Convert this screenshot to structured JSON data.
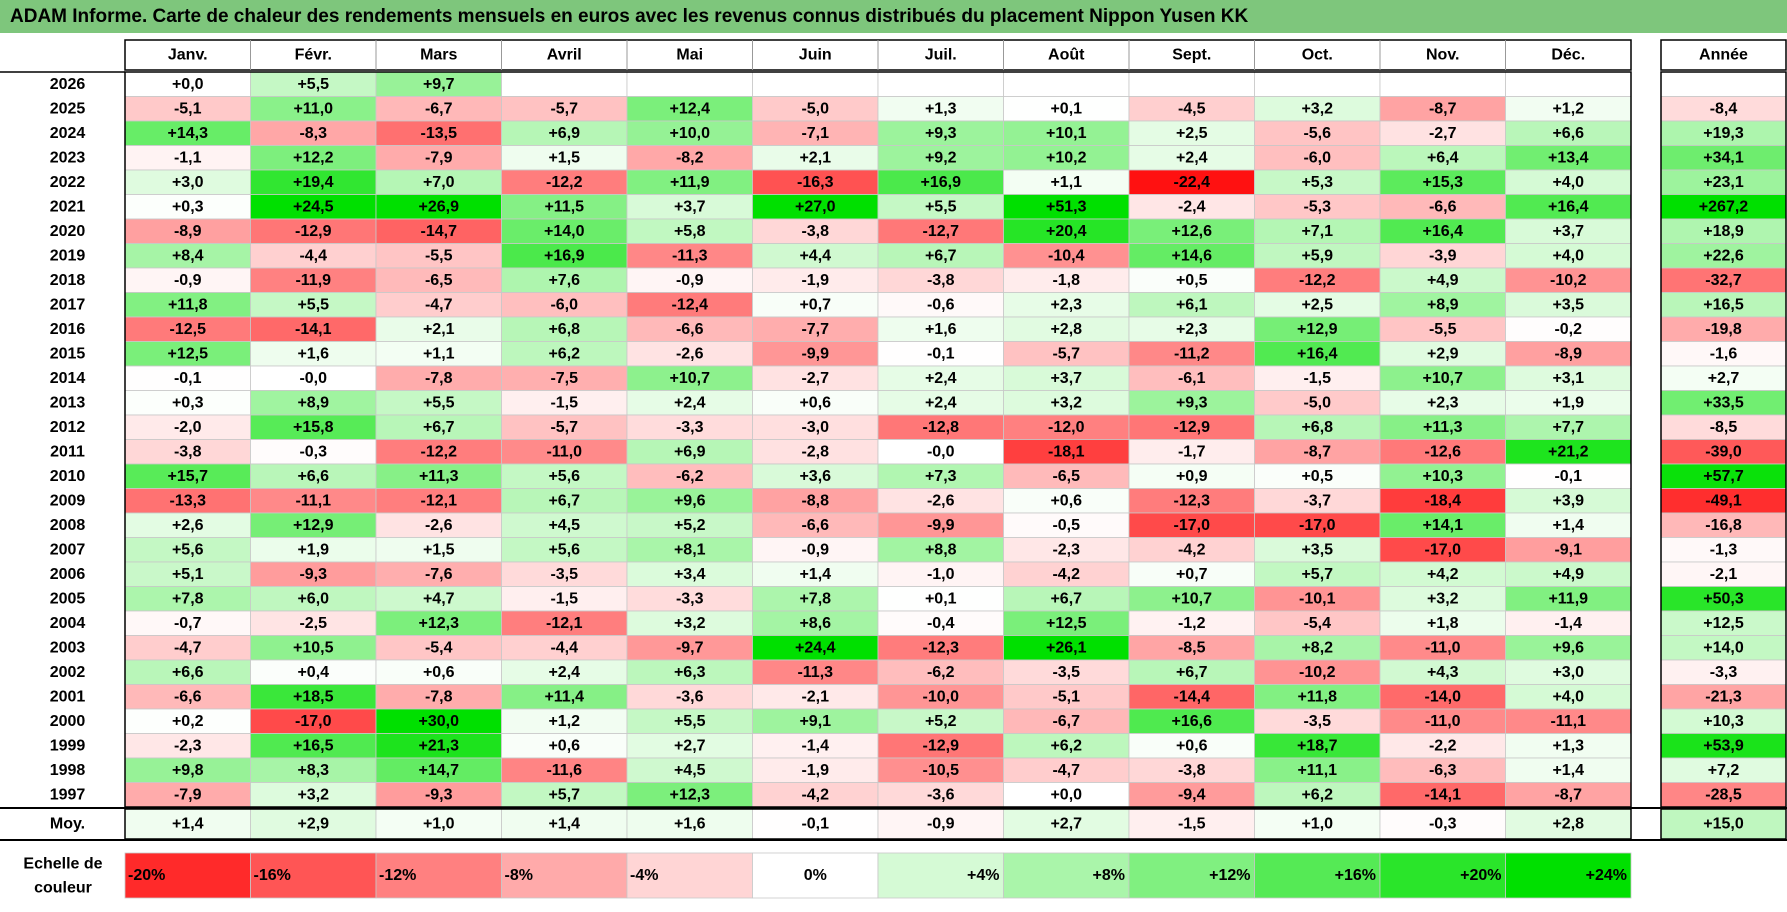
{
  "title": "ADAM Informe. Carte de chaleur des rendements mensuels en euros avec les revenus connus distribués du placement Nippon Yusen KK",
  "chart_data": {
    "type": "heatmap",
    "months": [
      "Janv.",
      "Févr.",
      "Mars",
      "Avril",
      "Mai",
      "Juin",
      "Juil.",
      "Août",
      "Sept.",
      "Oct.",
      "Nov.",
      "Déc."
    ],
    "year_header": "Année",
    "avg_label": "Moy.",
    "scale_label_line1": "Echelle de",
    "scale_label_line2": "couleur",
    "rows": [
      {
        "year": "2026",
        "values": [
          "+0,0",
          "+5,5",
          "+9,7",
          "",
          "",
          "",
          "",
          "",
          "",
          "",
          "",
          ""
        ],
        "annual": ""
      },
      {
        "year": "2025",
        "values": [
          "-5,1",
          "+11,0",
          "-6,7",
          "-5,7",
          "+12,4",
          "-5,0",
          "+1,3",
          "+0,1",
          "-4,5",
          "+3,2",
          "-8,7",
          "+1,2"
        ],
        "annual": "-8,4"
      },
      {
        "year": "2024",
        "values": [
          "+14,3",
          "-8,3",
          "-13,5",
          "+6,9",
          "+10,0",
          "-7,1",
          "+9,3",
          "+10,1",
          "+2,5",
          "-5,6",
          "-2,7",
          "+6,6"
        ],
        "annual": "+19,3"
      },
      {
        "year": "2023",
        "values": [
          "-1,1",
          "+12,2",
          "-7,9",
          "+1,5",
          "-8,2",
          "+2,1",
          "+9,2",
          "+10,2",
          "+2,4",
          "-6,0",
          "+6,4",
          "+13,4"
        ],
        "annual": "+34,1"
      },
      {
        "year": "2022",
        "values": [
          "+3,0",
          "+19,4",
          "+7,0",
          "-12,2",
          "+11,9",
          "-16,3",
          "+16,9",
          "+1,1",
          "-22,4",
          "+5,3",
          "+15,3",
          "+4,0"
        ],
        "annual": "+23,1"
      },
      {
        "year": "2021",
        "values": [
          "+0,3",
          "+24,5",
          "+26,9",
          "+11,5",
          "+3,7",
          "+27,0",
          "+5,5",
          "+51,3",
          "-2,4",
          "-5,3",
          "-6,6",
          "+16,4"
        ],
        "annual": "+267,2"
      },
      {
        "year": "2020",
        "values": [
          "-8,9",
          "-12,9",
          "-14,7",
          "+14,0",
          "+5,8",
          "-3,8",
          "-12,7",
          "+20,4",
          "+12,6",
          "+7,1",
          "+16,4",
          "+3,7"
        ],
        "annual": "+18,9"
      },
      {
        "year": "2019",
        "values": [
          "+8,4",
          "-4,4",
          "-5,5",
          "+16,9",
          "-11,3",
          "+4,4",
          "+6,7",
          "-10,4",
          "+14,6",
          "+5,9",
          "-3,9",
          "+4,0"
        ],
        "annual": "+22,6"
      },
      {
        "year": "2018",
        "values": [
          "-0,9",
          "-11,9",
          "-6,5",
          "+7,6",
          "-0,9",
          "-1,9",
          "-3,8",
          "-1,8",
          "+0,5",
          "-12,2",
          "+4,9",
          "-10,2"
        ],
        "annual": "-32,7"
      },
      {
        "year": "2017",
        "values": [
          "+11,8",
          "+5,5",
          "-4,7",
          "-6,0",
          "-12,4",
          "+0,7",
          "-0,6",
          "+2,3",
          "+6,1",
          "+2,5",
          "+8,9",
          "+3,5"
        ],
        "annual": "+16,5"
      },
      {
        "year": "2016",
        "values": [
          "-12,5",
          "-14,1",
          "+2,1",
          "+6,8",
          "-6,6",
          "-7,7",
          "+1,6",
          "+2,8",
          "+2,3",
          "+12,9",
          "-5,5",
          "-0,2"
        ],
        "annual": "-19,8"
      },
      {
        "year": "2015",
        "values": [
          "+12,5",
          "+1,6",
          "+1,1",
          "+6,2",
          "-2,6",
          "-9,9",
          "-0,1",
          "-5,7",
          "-11,2",
          "+16,4",
          "+2,9",
          "-8,9"
        ],
        "annual": "-1,6"
      },
      {
        "year": "2014",
        "values": [
          "-0,1",
          "-0,0",
          "-7,8",
          "-7,5",
          "+10,7",
          "-2,7",
          "+2,4",
          "+3,7",
          "-6,1",
          "-1,5",
          "+10,7",
          "+3,1"
        ],
        "annual": "+2,7"
      },
      {
        "year": "2013",
        "values": [
          "+0,3",
          "+8,9",
          "+5,5",
          "-1,5",
          "+2,4",
          "+0,6",
          "+2,4",
          "+3,2",
          "+9,3",
          "-5,0",
          "+2,3",
          "+1,9"
        ],
        "annual": "+33,5"
      },
      {
        "year": "2012",
        "values": [
          "-2,0",
          "+15,8",
          "+6,7",
          "-5,7",
          "-3,3",
          "-3,0",
          "-12,8",
          "-12,0",
          "-12,9",
          "+6,8",
          "+11,3",
          "+7,7"
        ],
        "annual": "-8,5"
      },
      {
        "year": "2011",
        "values": [
          "-3,8",
          "-0,3",
          "-12,2",
          "-11,0",
          "+6,9",
          "-2,8",
          "-0,0",
          "-18,1",
          "-1,7",
          "-8,7",
          "-12,6",
          "+21,2"
        ],
        "annual": "-39,0"
      },
      {
        "year": "2010",
        "values": [
          "+15,7",
          "+6,6",
          "+11,3",
          "+5,6",
          "-6,2",
          "+3,6",
          "+7,3",
          "-6,5",
          "+0,9",
          "+0,5",
          "+10,3",
          "-0,1"
        ],
        "annual": "+57,7"
      },
      {
        "year": "2009",
        "values": [
          "-13,3",
          "-11,1",
          "-12,1",
          "+6,7",
          "+9,6",
          "-8,8",
          "-2,6",
          "+0,6",
          "-12,3",
          "-3,7",
          "-18,4",
          "+3,9"
        ],
        "annual": "-49,1"
      },
      {
        "year": "2008",
        "values": [
          "+2,6",
          "+12,9",
          "-2,6",
          "+4,5",
          "+5,2",
          "-6,6",
          "-9,9",
          "-0,5",
          "-17,0",
          "-17,0",
          "+14,1",
          "+1,4"
        ],
        "annual": "-16,8"
      },
      {
        "year": "2007",
        "values": [
          "+5,6",
          "+1,9",
          "+1,5",
          "+5,6",
          "+8,1",
          "-0,9",
          "+8,8",
          "-2,3",
          "-4,2",
          "+3,5",
          "-17,0",
          "-9,1"
        ],
        "annual": "-1,3"
      },
      {
        "year": "2006",
        "values": [
          "+5,1",
          "-9,3",
          "-7,6",
          "-3,5",
          "+3,4",
          "+1,4",
          "-1,0",
          "-4,2",
          "+0,7",
          "+5,7",
          "+4,2",
          "+4,9"
        ],
        "annual": "-2,1"
      },
      {
        "year": "2005",
        "values": [
          "+7,8",
          "+6,0",
          "+4,7",
          "-1,5",
          "-3,3",
          "+7,8",
          "+0,1",
          "+6,7",
          "+10,7",
          "-10,1",
          "+3,2",
          "+11,9"
        ],
        "annual": "+50,3"
      },
      {
        "year": "2004",
        "values": [
          "-0,7",
          "-2,5",
          "+12,3",
          "-12,1",
          "+3,2",
          "+8,6",
          "-0,4",
          "+12,5",
          "-1,2",
          "-5,4",
          "+1,8",
          "-1,4"
        ],
        "annual": "+12,5"
      },
      {
        "year": "2003",
        "values": [
          "-4,7",
          "+10,5",
          "-5,4",
          "-4,4",
          "-9,7",
          "+24,4",
          "-12,3",
          "+26,1",
          "-8,5",
          "+8,2",
          "-11,0",
          "+9,6"
        ],
        "annual": "+14,0"
      },
      {
        "year": "2002",
        "values": [
          "+6,6",
          "+0,4",
          "+0,6",
          "+2,4",
          "+6,3",
          "-11,3",
          "-6,2",
          "-3,5",
          "+6,7",
          "-10,2",
          "+4,3",
          "+3,0"
        ],
        "annual": "-3,3"
      },
      {
        "year": "2001",
        "values": [
          "-6,6",
          "+18,5",
          "-7,8",
          "+11,4",
          "-3,6",
          "-2,1",
          "-10,0",
          "-5,1",
          "-14,4",
          "+11,8",
          "-14,0",
          "+4,0"
        ],
        "annual": "-21,3"
      },
      {
        "year": "2000",
        "values": [
          "+0,2",
          "-17,0",
          "+30,0",
          "+1,2",
          "+5,5",
          "+9,1",
          "+5,2",
          "-6,7",
          "+16,6",
          "-3,5",
          "-11,0",
          "-11,1"
        ],
        "annual": "+10,3"
      },
      {
        "year": "1999",
        "values": [
          "-2,3",
          "+16,5",
          "+21,3",
          "+0,6",
          "+2,7",
          "-1,4",
          "-12,9",
          "+6,2",
          "+0,6",
          "+18,7",
          "-2,2",
          "+1,3"
        ],
        "annual": "+53,9"
      },
      {
        "year": "1998",
        "values": [
          "+9,8",
          "+8,3",
          "+14,7",
          "-11,6",
          "+4,5",
          "-1,9",
          "-10,5",
          "-4,7",
          "-3,8",
          "+11,1",
          "-6,3",
          "+1,4"
        ],
        "annual": "+7,2"
      },
      {
        "year": "1997",
        "values": [
          "-7,9",
          "+3,2",
          "-9,3",
          "+5,7",
          "+12,3",
          "-4,2",
          "-3,6",
          "+0,0",
          "-9,4",
          "+6,2",
          "-14,1",
          "-8,7"
        ],
        "annual": "-28,5"
      }
    ],
    "averages": {
      "values": [
        "+1,4",
        "+2,9",
        "+1,0",
        "+1,4",
        "+1,6",
        "-0,1",
        "-0,9",
        "+2,7",
        "-1,5",
        "+1,0",
        "-0,3",
        "+2,8"
      ],
      "annual": "+15,0"
    },
    "scale": [
      "-20%",
      "-16%",
      "-12%",
      "-8%",
      "-4%",
      "0%",
      "+4%",
      "+8%",
      "+12%",
      "+16%",
      "+20%",
      "+24%"
    ],
    "colors": {
      "title_bg": "#7ec67c",
      "neg_max": "#ff0000",
      "pos_max": "#00e000",
      "neutral": "#ffffff"
    }
  }
}
